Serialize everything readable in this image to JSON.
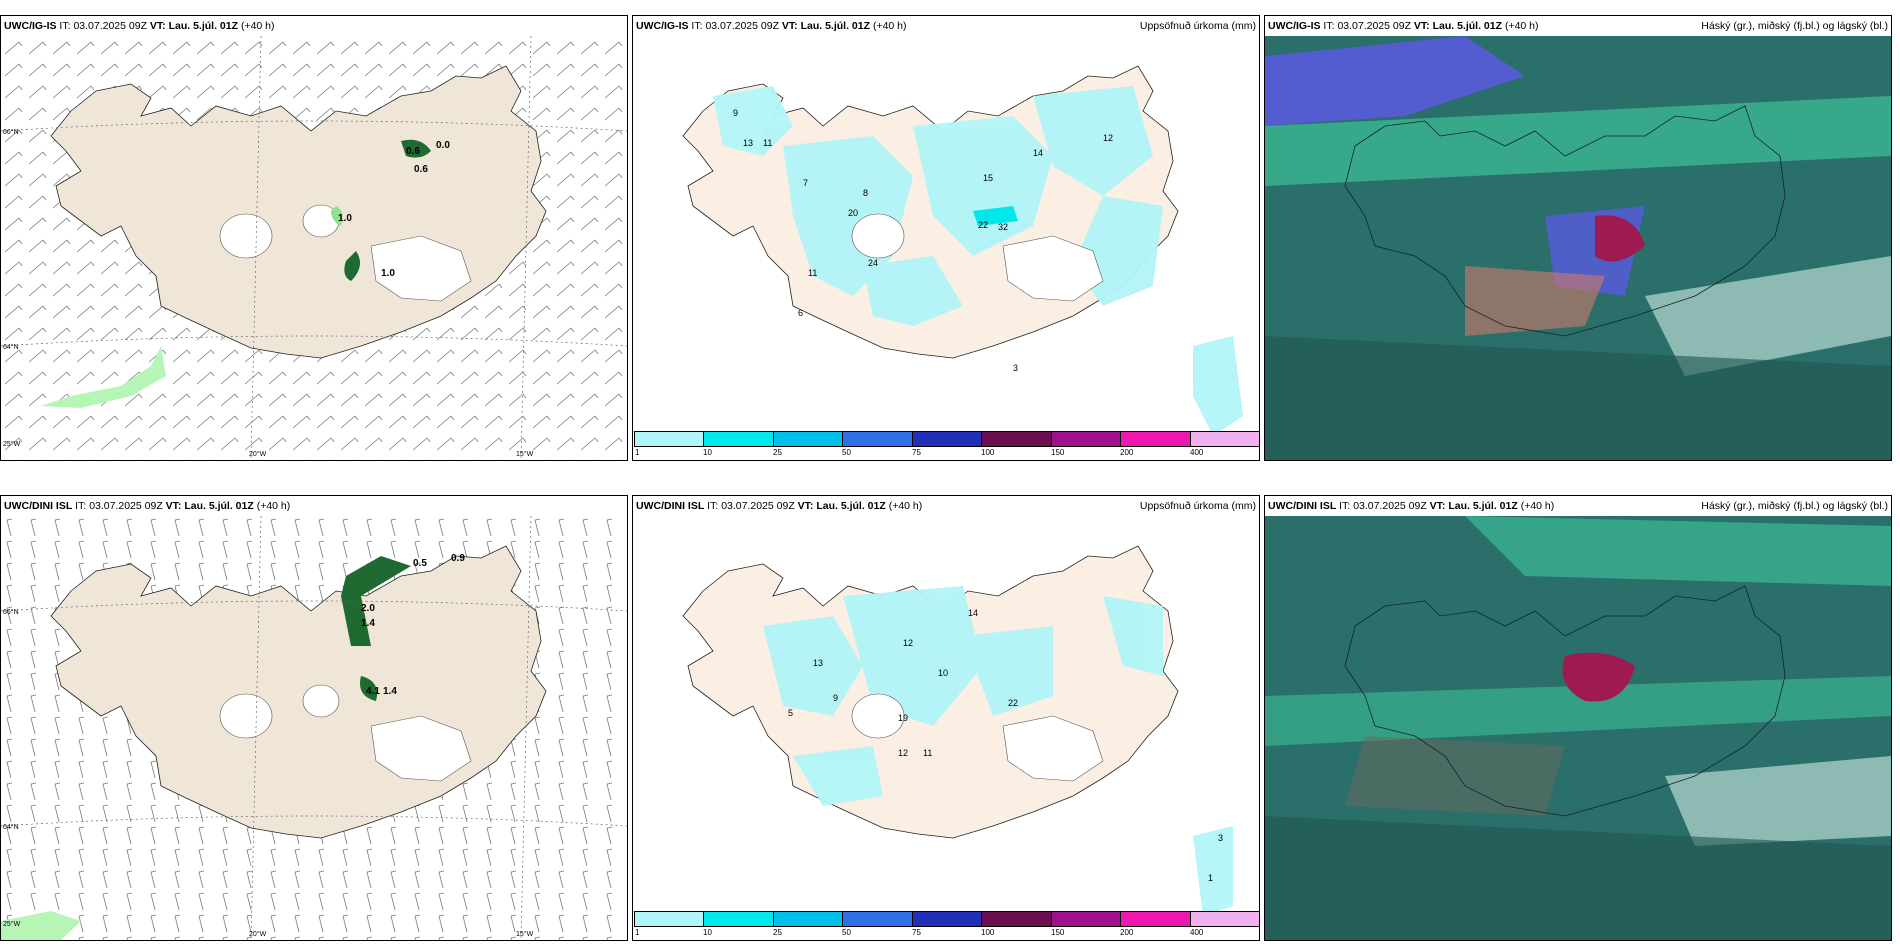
{
  "rows": [
    {
      "model": "UWC/IG-IS",
      "it_label": "IT:",
      "it_value": "03.07.2025 09Z",
      "vt_label": "VT:",
      "vt_value": "Lau. 5.júl. 01Z",
      "lead": "(+40 h)",
      "precip_title": "Uppsöfnuð úrkoma (mm)",
      "cloud_title": "Háský (gr.), miðský (fj.bl.) og lágský (bl.)",
      "wind_values": [
        "0.6",
        "0.0",
        "0.6",
        "1.0",
        "1.0"
      ],
      "precip_values": [
        "9",
        "13",
        "11",
        "7",
        "8",
        "20",
        "15",
        "14",
        "12",
        "22",
        "32",
        "24",
        "11",
        "6",
        "3"
      ]
    },
    {
      "model": "UWC/DINI ISL",
      "it_label": "IT:",
      "it_value": "03.07.2025 09Z",
      "vt_label": "VT:",
      "vt_value": "Lau. 5.júl. 01Z",
      "lead": "(+40 h)",
      "precip_title": "Uppsöfnuð úrkoma (mm)",
      "cloud_title": "Háský (gr.), miðský (fj.bl.) og lágský (bl.)",
      "wind_values": [
        "0.5",
        "0.9",
        "1.4",
        "1.4",
        "2.0",
        "4.1"
      ],
      "precip_values": [
        "14",
        "12",
        "13",
        "22",
        "10",
        "11",
        "19",
        "12",
        "9",
        "5",
        "3",
        "1"
      ]
    }
  ],
  "axis_labels": {
    "lat_66": "66°N",
    "lat_64": "64°N",
    "lon_25": "25°W",
    "lon_20": "20°W",
    "lon_15": "15°W"
  },
  "colorbar": {
    "labels": [
      "1",
      "10",
      "25",
      "50",
      "75",
      "100",
      "150",
      "200",
      "400"
    ],
    "colors": [
      "#b2f5f8",
      "#00e8ec",
      "#00bfe8",
      "#2f6fe8",
      "#1f2fb8",
      "#6a0e50",
      "#a0108a",
      "#ee18b0",
      "#f2b0f0"
    ]
  },
  "colors": {
    "land": "#f0e6d8",
    "sea": "#ffffff",
    "glacier": "#ffffff",
    "precip_light": "#b2f5f8",
    "cloud_sea": "#2b6f6a",
    "cloud_high": "#3fd0a0",
    "cloud_mid": "#5a5ae0",
    "cloud_low": "#9e1a50"
  }
}
